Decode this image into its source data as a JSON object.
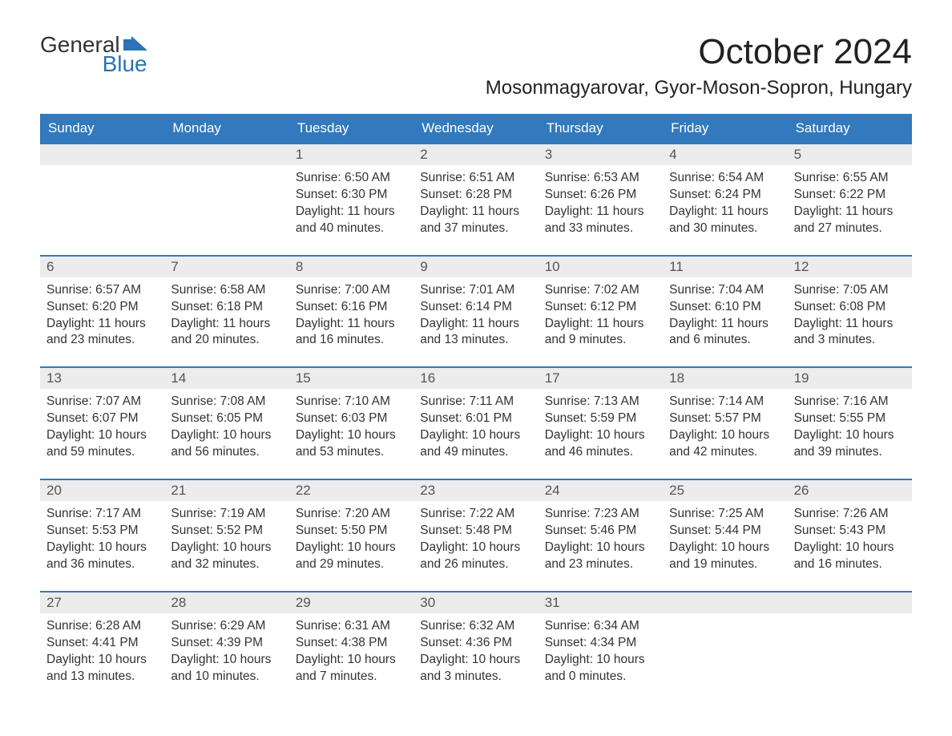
{
  "logo": {
    "general": "General",
    "blue": "Blue"
  },
  "title": "October 2024",
  "location": "Mosonmagyarovar, Gyor-Moson-Sopron, Hungary",
  "colors": {
    "header_bg": "#3279bd",
    "header_fg": "#ffffff",
    "daynum_bg": "#ececec",
    "daynum_fg": "#555555",
    "text": "#333333",
    "logo_blue": "#2d73b5",
    "page_bg": "#ffffff",
    "row_border": "#3279bd"
  },
  "typography": {
    "title_fontsize": 44,
    "location_fontsize": 24,
    "weekday_fontsize": 17,
    "daynum_fontsize": 17,
    "body_fontsize": 15.5
  },
  "weekdays": [
    "Sunday",
    "Monday",
    "Tuesday",
    "Wednesday",
    "Thursday",
    "Friday",
    "Saturday"
  ],
  "weeks": [
    [
      {
        "num": "",
        "sunrise": "",
        "sunset": "",
        "daylight": ""
      },
      {
        "num": "",
        "sunrise": "",
        "sunset": "",
        "daylight": ""
      },
      {
        "num": "1",
        "sunrise": "Sunrise: 6:50 AM",
        "sunset": "Sunset: 6:30 PM",
        "daylight": "Daylight: 11 hours and 40 minutes."
      },
      {
        "num": "2",
        "sunrise": "Sunrise: 6:51 AM",
        "sunset": "Sunset: 6:28 PM",
        "daylight": "Daylight: 11 hours and 37 minutes."
      },
      {
        "num": "3",
        "sunrise": "Sunrise: 6:53 AM",
        "sunset": "Sunset: 6:26 PM",
        "daylight": "Daylight: 11 hours and 33 minutes."
      },
      {
        "num": "4",
        "sunrise": "Sunrise: 6:54 AM",
        "sunset": "Sunset: 6:24 PM",
        "daylight": "Daylight: 11 hours and 30 minutes."
      },
      {
        "num": "5",
        "sunrise": "Sunrise: 6:55 AM",
        "sunset": "Sunset: 6:22 PM",
        "daylight": "Daylight: 11 hours and 27 minutes."
      }
    ],
    [
      {
        "num": "6",
        "sunrise": "Sunrise: 6:57 AM",
        "sunset": "Sunset: 6:20 PM",
        "daylight": "Daylight: 11 hours and 23 minutes."
      },
      {
        "num": "7",
        "sunrise": "Sunrise: 6:58 AM",
        "sunset": "Sunset: 6:18 PM",
        "daylight": "Daylight: 11 hours and 20 minutes."
      },
      {
        "num": "8",
        "sunrise": "Sunrise: 7:00 AM",
        "sunset": "Sunset: 6:16 PM",
        "daylight": "Daylight: 11 hours and 16 minutes."
      },
      {
        "num": "9",
        "sunrise": "Sunrise: 7:01 AM",
        "sunset": "Sunset: 6:14 PM",
        "daylight": "Daylight: 11 hours and 13 minutes."
      },
      {
        "num": "10",
        "sunrise": "Sunrise: 7:02 AM",
        "sunset": "Sunset: 6:12 PM",
        "daylight": "Daylight: 11 hours and 9 minutes."
      },
      {
        "num": "11",
        "sunrise": "Sunrise: 7:04 AM",
        "sunset": "Sunset: 6:10 PM",
        "daylight": "Daylight: 11 hours and 6 minutes."
      },
      {
        "num": "12",
        "sunrise": "Sunrise: 7:05 AM",
        "sunset": "Sunset: 6:08 PM",
        "daylight": "Daylight: 11 hours and 3 minutes."
      }
    ],
    [
      {
        "num": "13",
        "sunrise": "Sunrise: 7:07 AM",
        "sunset": "Sunset: 6:07 PM",
        "daylight": "Daylight: 10 hours and 59 minutes."
      },
      {
        "num": "14",
        "sunrise": "Sunrise: 7:08 AM",
        "sunset": "Sunset: 6:05 PM",
        "daylight": "Daylight: 10 hours and 56 minutes."
      },
      {
        "num": "15",
        "sunrise": "Sunrise: 7:10 AM",
        "sunset": "Sunset: 6:03 PM",
        "daylight": "Daylight: 10 hours and 53 minutes."
      },
      {
        "num": "16",
        "sunrise": "Sunrise: 7:11 AM",
        "sunset": "Sunset: 6:01 PM",
        "daylight": "Daylight: 10 hours and 49 minutes."
      },
      {
        "num": "17",
        "sunrise": "Sunrise: 7:13 AM",
        "sunset": "Sunset: 5:59 PM",
        "daylight": "Daylight: 10 hours and 46 minutes."
      },
      {
        "num": "18",
        "sunrise": "Sunrise: 7:14 AM",
        "sunset": "Sunset: 5:57 PM",
        "daylight": "Daylight: 10 hours and 42 minutes."
      },
      {
        "num": "19",
        "sunrise": "Sunrise: 7:16 AM",
        "sunset": "Sunset: 5:55 PM",
        "daylight": "Daylight: 10 hours and 39 minutes."
      }
    ],
    [
      {
        "num": "20",
        "sunrise": "Sunrise: 7:17 AM",
        "sunset": "Sunset: 5:53 PM",
        "daylight": "Daylight: 10 hours and 36 minutes."
      },
      {
        "num": "21",
        "sunrise": "Sunrise: 7:19 AM",
        "sunset": "Sunset: 5:52 PM",
        "daylight": "Daylight: 10 hours and 32 minutes."
      },
      {
        "num": "22",
        "sunrise": "Sunrise: 7:20 AM",
        "sunset": "Sunset: 5:50 PM",
        "daylight": "Daylight: 10 hours and 29 minutes."
      },
      {
        "num": "23",
        "sunrise": "Sunrise: 7:22 AM",
        "sunset": "Sunset: 5:48 PM",
        "daylight": "Daylight: 10 hours and 26 minutes."
      },
      {
        "num": "24",
        "sunrise": "Sunrise: 7:23 AM",
        "sunset": "Sunset: 5:46 PM",
        "daylight": "Daylight: 10 hours and 23 minutes."
      },
      {
        "num": "25",
        "sunrise": "Sunrise: 7:25 AM",
        "sunset": "Sunset: 5:44 PM",
        "daylight": "Daylight: 10 hours and 19 minutes."
      },
      {
        "num": "26",
        "sunrise": "Sunrise: 7:26 AM",
        "sunset": "Sunset: 5:43 PM",
        "daylight": "Daylight: 10 hours and 16 minutes."
      }
    ],
    [
      {
        "num": "27",
        "sunrise": "Sunrise: 6:28 AM",
        "sunset": "Sunset: 4:41 PM",
        "daylight": "Daylight: 10 hours and 13 minutes."
      },
      {
        "num": "28",
        "sunrise": "Sunrise: 6:29 AM",
        "sunset": "Sunset: 4:39 PM",
        "daylight": "Daylight: 10 hours and 10 minutes."
      },
      {
        "num": "29",
        "sunrise": "Sunrise: 6:31 AM",
        "sunset": "Sunset: 4:38 PM",
        "daylight": "Daylight: 10 hours and 7 minutes."
      },
      {
        "num": "30",
        "sunrise": "Sunrise: 6:32 AM",
        "sunset": "Sunset: 4:36 PM",
        "daylight": "Daylight: 10 hours and 3 minutes."
      },
      {
        "num": "31",
        "sunrise": "Sunrise: 6:34 AM",
        "sunset": "Sunset: 4:34 PM",
        "daylight": "Daylight: 10 hours and 0 minutes."
      },
      {
        "num": "",
        "sunrise": "",
        "sunset": "",
        "daylight": ""
      },
      {
        "num": "",
        "sunrise": "",
        "sunset": "",
        "daylight": ""
      }
    ]
  ]
}
